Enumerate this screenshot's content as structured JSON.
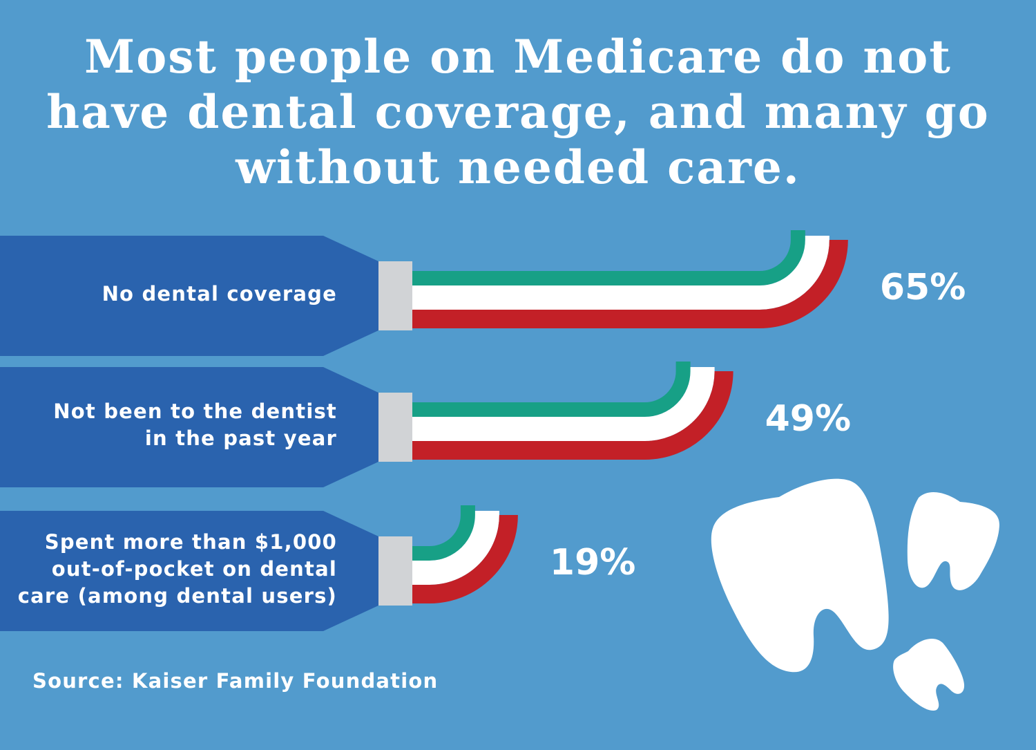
{
  "title_lines": [
    "Most people on Medicare do not",
    "have dental coverage, and many go",
    "without needed care."
  ],
  "source": "Source: Kaiser Family Foundation",
  "colors": {
    "background": "#529bcd",
    "handle": "#2a63ae",
    "ferrule": "#d1d3d6",
    "paste_top": "#17a086",
    "paste_middle": "#ffffff",
    "paste_bottom": "#c32027",
    "teeth": "#ffffff"
  },
  "icons": [
    "toothbrush-icon",
    "toothpaste-icon",
    "tooth-icon"
  ],
  "chart_data": {
    "type": "bar",
    "orientation": "horizontal",
    "title": "Most people on Medicare do not have dental coverage, and many go without needed care.",
    "categories": [
      "No dental coverage",
      "Not been to the dentist in the past year",
      "Spent more than $1,000 out-of-pocket on dental care (among dental users)"
    ],
    "category_lines": [
      [
        "No dental coverage"
      ],
      [
        "Not been to the dentist",
        "in the past year"
      ],
      [
        "Spent more than $1,000",
        "out-of-pocket on dental",
        "care (among dental users)"
      ]
    ],
    "values": [
      65,
      49,
      19
    ],
    "value_labels": [
      "65%",
      "49%",
      "19%"
    ],
    "unit": "%",
    "grid": false
  }
}
